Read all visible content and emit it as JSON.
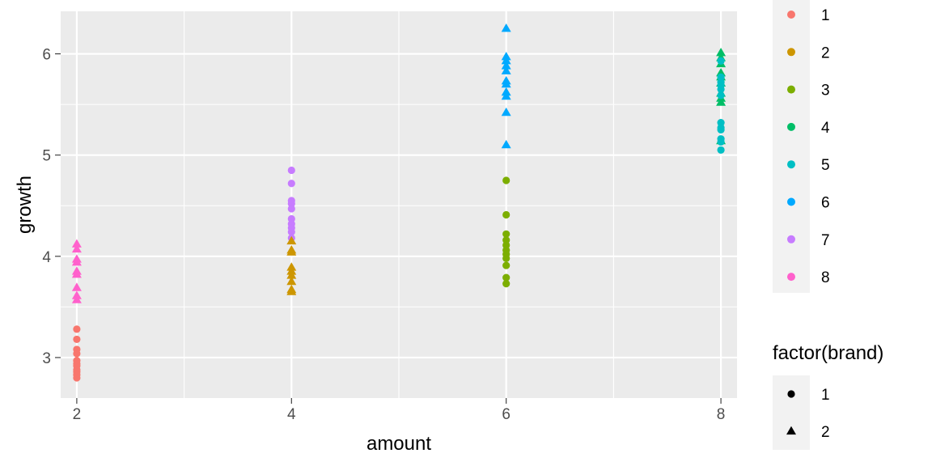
{
  "chart_data": {
    "type": "scatter",
    "title": "",
    "xlabel": "amount",
    "ylabel": "growth",
    "xlim": [
      1.85,
      8.15
    ],
    "ylim": [
      2.6,
      6.42
    ],
    "x_ticks": [
      2,
      4,
      6,
      8
    ],
    "y_ticks": [
      3,
      4,
      5,
      6
    ],
    "grid": true,
    "legend_placement": "right",
    "color_legend": {
      "title": "",
      "entries": [
        {
          "label": "1",
          "color": "#F8766D"
        },
        {
          "label": "2",
          "color": "#CD9600"
        },
        {
          "label": "3",
          "color": "#7CAE00"
        },
        {
          "label": "4",
          "color": "#00BE67"
        },
        {
          "label": "5",
          "color": "#00BFC4"
        },
        {
          "label": "6",
          "color": "#00A9FF"
        },
        {
          "label": "7",
          "color": "#C77CFF"
        },
        {
          "label": "8",
          "color": "#FF61CC"
        }
      ]
    },
    "shape_legend": {
      "title": "factor(brand)",
      "entries": [
        {
          "label": "1",
          "shape": "circle"
        },
        {
          "label": "2",
          "shape": "triangle"
        }
      ]
    },
    "points": [
      {
        "x": 2,
        "group": "1",
        "brand": "1",
        "y": [
          3.28,
          3.18,
          3.08,
          3.04,
          2.97,
          2.94,
          2.92,
          2.88,
          2.86,
          2.83,
          2.8
        ]
      },
      {
        "x": 2,
        "group": "8",
        "brand": "2",
        "y": [
          4.12,
          4.07,
          3.97,
          3.94,
          3.85,
          3.82,
          3.69,
          3.61,
          3.57
        ]
      },
      {
        "x": 4,
        "group": "7",
        "brand": "1",
        "y": [
          4.85,
          4.72,
          4.55,
          4.52,
          4.47,
          4.37,
          4.32,
          4.28,
          4.24,
          4.18
        ]
      },
      {
        "x": 4,
        "group": "2",
        "brand": "2",
        "y": [
          4.15,
          4.06,
          4.04,
          3.89,
          3.85,
          3.81,
          3.75,
          3.67,
          3.65
        ]
      },
      {
        "x": 6,
        "group": "3",
        "brand": "1",
        "y": [
          4.75,
          4.41,
          4.22,
          4.16,
          4.11,
          4.06,
          4.02,
          3.98,
          3.91,
          3.79,
          3.73
        ]
      },
      {
        "x": 6,
        "group": "6",
        "brand": "2",
        "y": [
          6.25,
          5.97,
          5.93,
          5.88,
          5.83,
          5.73,
          5.7,
          5.62,
          5.58,
          5.42,
          5.1
        ]
      },
      {
        "x": 8,
        "group": "4",
        "brand": "2",
        "y": [
          6.01,
          5.96,
          5.9,
          5.81,
          5.77,
          5.71,
          5.61,
          5.56,
          5.52,
          5.14
        ]
      },
      {
        "x": 8,
        "group": "5",
        "brand": "1",
        "y": [
          5.93,
          5.77,
          5.72,
          5.69,
          5.65,
          5.59,
          5.32,
          5.27,
          5.25,
          5.16,
          5.13,
          5.05
        ]
      }
    ]
  }
}
